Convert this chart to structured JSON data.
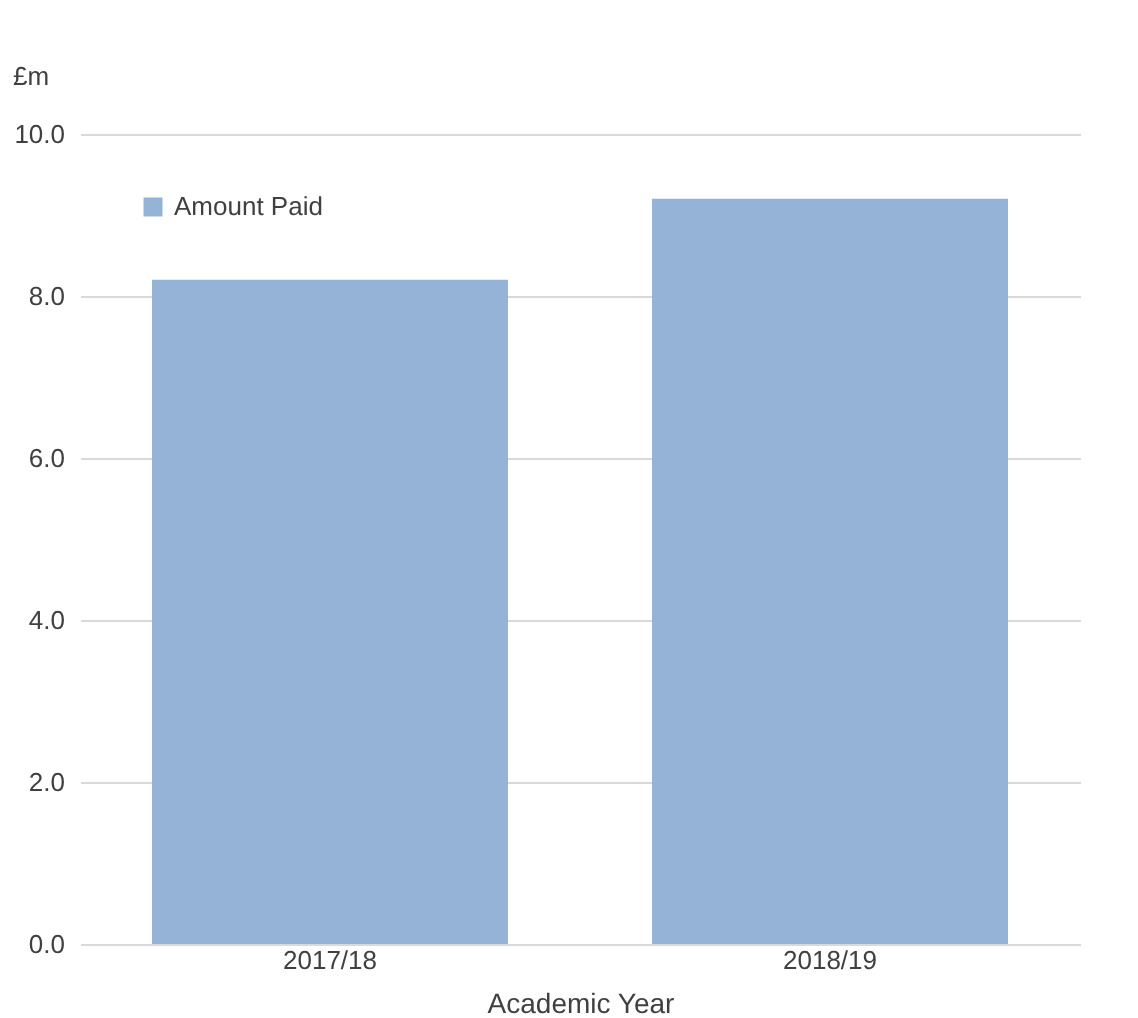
{
  "chart_data": {
    "type": "bar",
    "xlabel": "Academic Year",
    "ylabel": "£m",
    "categories": [
      "2017/18",
      "2018/19"
    ],
    "series": [
      {
        "name": "Amount Paid",
        "color": "#95b3d7",
        "values": [
          8.2,
          9.2
        ]
      }
    ],
    "ylim": [
      0,
      10
    ],
    "yticks": [
      {
        "value": 0,
        "label": "0.0"
      },
      {
        "value": 2,
        "label": "2.0"
      },
      {
        "value": 4,
        "label": "4.0"
      },
      {
        "value": 6,
        "label": "6.0"
      },
      {
        "value": 8,
        "label": "8.0"
      },
      {
        "value": 10,
        "label": "10.0"
      }
    ],
    "grid": "y",
    "legend": "top left"
  }
}
